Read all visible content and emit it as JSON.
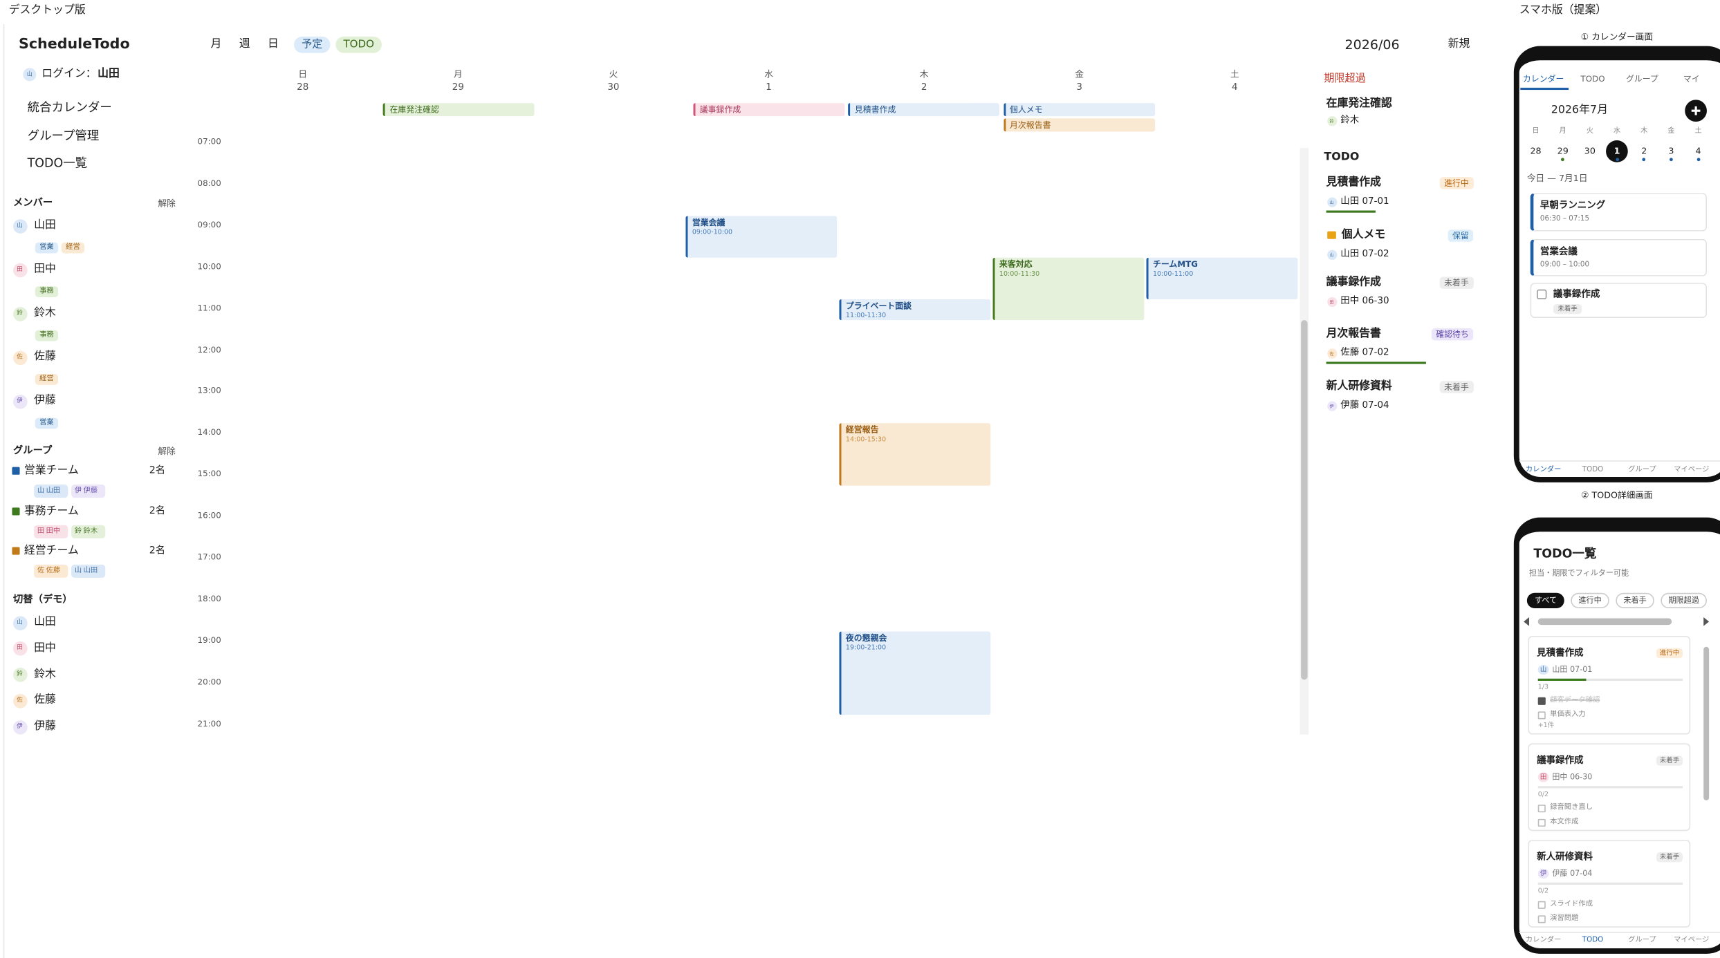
{
  "labels": {
    "desktop": "デスクトップ版",
    "mobile": "スマホ版（提案）",
    "calendar_screen": "① カレンダー画面",
    "todo_screen": "② TODO詳細画面"
  },
  "avatar_colors": {
    "山": [
      "#dbe8f7",
      "#3a6ea5"
    ],
    "田": [
      "#f9e1e8",
      "#c0506e"
    ],
    "鈴": [
      "#e4f0d9",
      "#4b7a2a"
    ],
    "佐": [
      "#fbe9d4",
      "#b87320"
    ],
    "伊": [
      "#ebe6f8",
      "#6a56b0"
    ]
  },
  "event_colors": {
    "blue": [
      "#1f5fa8",
      "#e4eef9",
      "#1f4f86"
    ],
    "green": [
      "#4a7d22",
      "#e6f1dc",
      "#3d6a1c"
    ],
    "orange": [
      "#c0781d",
      "#f9e8d2",
      "#9a5e14"
    ],
    "pink": [
      "#d3557a",
      "#fbe3ea",
      "#a8385a"
    ]
  },
  "sidebar": {
    "app": "ScheduleTodo",
    "login_avatar": "山",
    "login_label": "ログイン：",
    "login_user": "山田",
    "nav": [
      "統合カレンダー",
      "グループ管理",
      "TODO一覧"
    ],
    "members_title": "メンバー",
    "members_clear": "解除",
    "members": [
      {
        "avatar": "山",
        "name": "山田",
        "tags": [
          "営業",
          "経営"
        ]
      },
      {
        "avatar": "田",
        "name": "田中",
        "tags": [
          "事務"
        ]
      },
      {
        "avatar": "鈴",
        "name": "鈴木",
        "tags": [
          "事務"
        ]
      },
      {
        "avatar": "佐",
        "name": "佐藤",
        "tags": [
          "経営"
        ]
      },
      {
        "avatar": "伊",
        "name": "伊藤",
        "tags": [
          "営業"
        ]
      }
    ],
    "groups_title": "グループ",
    "groups_clear": "解除",
    "groups": [
      {
        "name": "営業チーム",
        "count": "2名",
        "color": "#1f5fa8",
        "members": [
          {
            "avatar": "山",
            "name": "山田"
          },
          {
            "avatar": "伊",
            "name": "伊藤"
          }
        ]
      },
      {
        "name": "事務チーム",
        "count": "2名",
        "color": "#3d7a1f",
        "members": [
          {
            "avatar": "田",
            "name": "田中"
          },
          {
            "avatar": "鈴",
            "name": "鈴木"
          }
        ]
      },
      {
        "name": "経営チーム",
        "count": "2名",
        "color": "#c07a1a",
        "members": [
          {
            "avatar": "佐",
            "name": "佐藤"
          },
          {
            "avatar": "山",
            "name": "山田"
          }
        ]
      }
    ],
    "switch_title": "切替（デモ）",
    "switch": [
      {
        "avatar": "山",
        "name": "山田"
      },
      {
        "avatar": "田",
        "name": "田中"
      },
      {
        "avatar": "鈴",
        "name": "鈴木"
      },
      {
        "avatar": "佐",
        "name": "佐藤"
      },
      {
        "avatar": "伊",
        "name": "伊藤"
      }
    ]
  },
  "toolbar": {
    "views": [
      "月",
      "週",
      "日"
    ],
    "filters": [
      {
        "label": "予定",
        "bg": "#dcebf9",
        "color": "#2a5a8a"
      },
      {
        "label": "TODO",
        "bg": "#e3f0d8",
        "color": "#3d6a1c"
      }
    ],
    "month": "2026/06",
    "new": "新規"
  },
  "calendar": {
    "times": [
      "07:00",
      "08:00",
      "09:00",
      "10:00",
      "11:00",
      "12:00",
      "13:00",
      "14:00",
      "15:00",
      "16:00",
      "17:00",
      "18:00",
      "19:00",
      "20:00",
      "21:00"
    ],
    "days": [
      {
        "dow": "日",
        "date": "28",
        "allday": [],
        "events": []
      },
      {
        "dow": "月",
        "date": "29",
        "allday": [
          {
            "title": "在庫発注確認",
            "color": "green"
          }
        ],
        "events": []
      },
      {
        "dow": "火",
        "date": "30",
        "allday": [],
        "events": []
      },
      {
        "dow": "水",
        "date": "1",
        "allday": [
          {
            "title": "議事録作成",
            "color": "pink"
          }
        ],
        "events": [
          {
            "title": "営業会議",
            "time": "09:00-10:00",
            "color": "blue"
          }
        ]
      },
      {
        "dow": "木",
        "date": "2",
        "allday": [
          {
            "title": "見積書作成",
            "color": "blue"
          }
        ],
        "events": [
          {
            "title": "プライベート面談",
            "time": "11:00-11:30",
            "color": "blue"
          },
          {
            "title": "経営報告",
            "time": "14:00-15:30",
            "color": "orange"
          },
          {
            "title": "夜の懇親会",
            "time": "19:00-21:00",
            "color": "blue"
          }
        ]
      },
      {
        "dow": "金",
        "date": "3",
        "allday": [
          {
            "title": "個人メモ",
            "color": "blue"
          },
          {
            "title": "月次報告書",
            "color": "orange"
          }
        ],
        "events": [
          {
            "title": "来客対応",
            "time": "10:00-11:30",
            "color": "green"
          }
        ]
      },
      {
        "dow": "土",
        "date": "4",
        "allday": [],
        "events": [
          {
            "title": "チームMTG",
            "time": "10:00-11:00",
            "color": "blue"
          }
        ]
      }
    ]
  },
  "right_panel": {
    "overdue_title": "期限超過",
    "overdue": [
      {
        "title": "在庫発注確認",
        "avatar": "鈴",
        "assignee": "鈴木"
      }
    ],
    "todo_title": "TODO",
    "todos": [
      {
        "title": "見積書作成",
        "status": "進行中",
        "status_color": "#b7650f",
        "status_bg": "#fdecd7",
        "avatar": "山",
        "assignee": "山田 07-01",
        "progress_bar": true
      },
      {
        "title": "個人メモ",
        "locked": true,
        "status": "保留",
        "status_color": "#2c6aa5",
        "status_bg": "#dfeefb",
        "avatar": "山",
        "assignee": "山田 07-02"
      },
      {
        "title": "議事録作成",
        "status": "未着手",
        "status_color": "#666666",
        "status_bg": "#eeeeee",
        "avatar": "田",
        "assignee": "田中 06-30"
      },
      {
        "title": "月次報告書",
        "status": "確認待ち",
        "status_color": "#5b46a8",
        "status_bg": "#ebe6fa",
        "avatar": "佐",
        "assignee": "佐藤 07-02",
        "progress_bar": true
      },
      {
        "title": "新人研修資料",
        "status": "未着手",
        "status_color": "#666666",
        "status_bg": "#eeeeee",
        "avatar": "伊",
        "assignee": "伊藤 07-04"
      }
    ]
  },
  "mobile_calendar": {
    "tabs": [
      "カレンダー",
      "TODO",
      "グループ",
      "マイ"
    ],
    "month": "2026年7月",
    "weekdays": [
      "日",
      "月",
      "火",
      "水",
      "木",
      "金",
      "土"
    ],
    "dates": [
      {
        "date": "28"
      },
      {
        "date": "29",
        "dot": "#3d7a1f"
      },
      {
        "date": "30"
      },
      {
        "date": "1",
        "today": true,
        "dot": "#1f5fa8"
      },
      {
        "date": "2",
        "dot": "#1f5fa8"
      },
      {
        "date": "3",
        "dot": "#1f5fa8"
      },
      {
        "date": "4",
        "dot": "#1f5fa8"
      }
    ],
    "today": "今日 — 7月1日",
    "items": [
      {
        "title": "早朝ランニング",
        "time": "06:30 – 07:15"
      },
      {
        "title": "営業会議",
        "time": "09:00 – 10:00"
      },
      {
        "title": "議事録作成",
        "status": "未着手",
        "todo": true
      }
    ],
    "bottom_tabs": [
      "カレンダー",
      "TODO",
      "グループ",
      "マイページ"
    ]
  },
  "mobile_todo": {
    "title": "TODO一覧",
    "subtitle": "担当・期限でフィルター可能",
    "filters": [
      "すべて",
      "進行中",
      "未着手",
      "期限超過"
    ],
    "cards": [
      {
        "title": "見積書作成",
        "status": "進行中",
        "status_color": "#b7650f",
        "status_bg": "#fdecd7",
        "avatar": "山",
        "assignee": "山田 07-01",
        "progress": "1/3",
        "subtasks": [
          {
            "text": "顧客データ確認",
            "done": true
          },
          {
            "text": "単価表入力"
          }
        ],
        "more": "+1件"
      },
      {
        "title": "議事録作成",
        "status": "未着手",
        "status_color": "#666666",
        "status_bg": "#eeeeee",
        "avatar": "田",
        "assignee": "田中 06-30",
        "progress": "0/2",
        "subtasks": [
          {
            "text": "録音聞き直し"
          },
          {
            "text": "本文作成"
          }
        ]
      },
      {
        "title": "新人研修資料",
        "status": "未着手",
        "status_color": "#666666",
        "status_bg": "#eeeeee",
        "avatar": "伊",
        "assignee": "伊藤 07-04",
        "progress": "0/2",
        "subtasks": [
          {
            "text": "スライド作成"
          },
          {
            "text": "演習問題"
          }
        ]
      }
    ],
    "bottom_tabs": [
      "カレンダー",
      "TODO",
      "グループ",
      "マイページ"
    ]
  }
}
